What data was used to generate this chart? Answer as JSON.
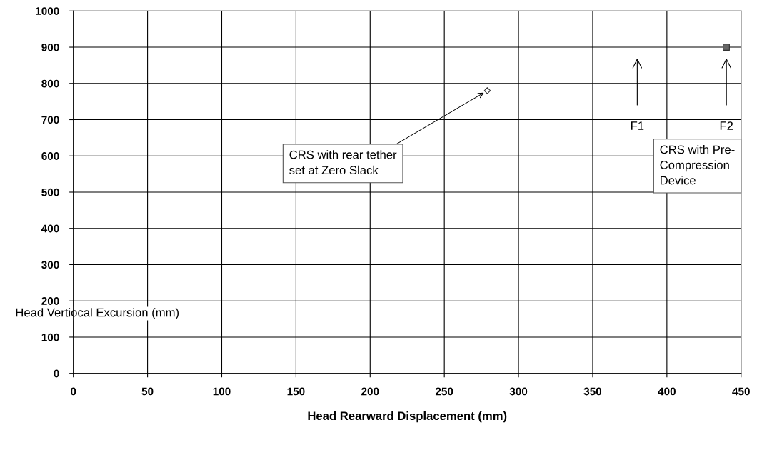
{
  "chart_data": {
    "type": "scatter",
    "xlabel": "Head Rearward Displacement (mm)",
    "ylabel": "Head Vertiocal Excursion (mm)",
    "series": [
      {
        "x": [
          279
        ],
        "values": [
          780
        ],
        "color": "#ffffff",
        "marker": "diamond"
      },
      {
        "x": [
          440
        ],
        "values": [
          900
        ],
        "color": "#666666",
        "marker": "square"
      }
    ],
    "xlim": [
      0,
      450
    ],
    "xticks": [
      0,
      50,
      100,
      150,
      200,
      250,
      300,
      350,
      400,
      450
    ],
    "ylim": [
      0,
      1000
    ],
    "yticks": [
      0,
      100,
      200,
      300,
      400,
      500,
      600,
      700,
      800,
      900,
      1000
    ],
    "grid": true,
    "annotations": [
      {
        "text": "CRS with rear tether\nset at Zero Slack",
        "x": 279,
        "y": 780
      },
      "F1",
      "F2",
      "CRS with Pre-\nCompression\nDevice"
    ]
  }
}
